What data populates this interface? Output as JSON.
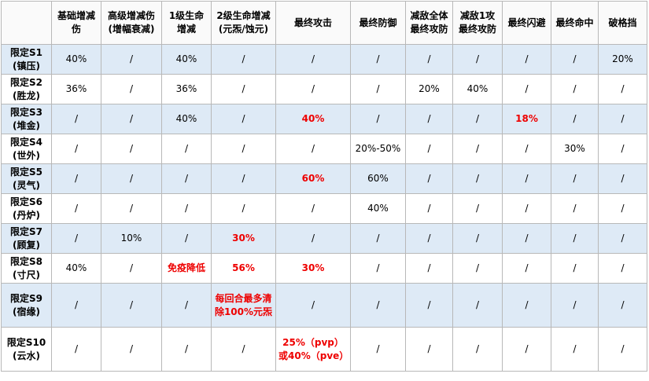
{
  "table": {
    "header": [
      "基础增减伤",
      "高级增减伤(增幅衰减)",
      "1级生命增减",
      "2级生命增减(元炁/蚀元)",
      "最终攻击",
      "最终防御",
      "减敌全体最终攻防",
      "减敌1攻最终攻防",
      "最终闪避",
      "最终命中",
      "破格挡"
    ],
    "emphasis_color": "#ee0000",
    "rows": [
      {
        "label": "限定S1",
        "note": "(镇压)",
        "cells": [
          "40%",
          "/",
          "40%",
          "/",
          "/",
          "/",
          "/",
          "/",
          "/",
          "/",
          "20%"
        ],
        "emphasis": []
      },
      {
        "label": "限定S2",
        "note": "(胜龙)",
        "cells": [
          "36%",
          "/",
          "36%",
          "/",
          "/",
          "/",
          "20%",
          "40%",
          "/",
          "/",
          "/"
        ],
        "emphasis": []
      },
      {
        "label": "限定S3",
        "note": "(堆金)",
        "cells": [
          "/",
          "/",
          "40%",
          "/",
          "40%",
          "/",
          "/",
          "/",
          "18%",
          "/",
          "/"
        ],
        "emphasis": [
          4,
          8
        ]
      },
      {
        "label": "限定S4",
        "note": "(世外)",
        "cells": [
          "/",
          "/",
          "/",
          "/",
          "/",
          "20%-50%",
          "/",
          "/",
          "/",
          "30%",
          "/"
        ],
        "emphasis": []
      },
      {
        "label": "限定S5",
        "note": "(灵气)",
        "cells": [
          "/",
          "/",
          "/",
          "/",
          "60%",
          "60%",
          "/",
          "/",
          "/",
          "/",
          "/"
        ],
        "emphasis": [
          4
        ]
      },
      {
        "label": "限定S6",
        "note": "(丹炉)",
        "cells": [
          "/",
          "/",
          "/",
          "/",
          "/",
          "40%",
          "/",
          "/",
          "/",
          "/",
          "/"
        ],
        "emphasis": []
      },
      {
        "label": "限定S7",
        "note": "(顾复)",
        "cells": [
          "/",
          "10%",
          "/",
          "30%",
          "/",
          "/",
          "/",
          "/",
          "/",
          "/",
          "/"
        ],
        "emphasis": [
          3
        ]
      },
      {
        "label": "限定S8",
        "note": "(寸尺)",
        "cells": [
          "40%",
          "/",
          "免疫降低",
          "56%",
          "30%",
          "/",
          "/",
          "/",
          "/",
          "/",
          "/"
        ],
        "emphasis": [
          2,
          3,
          4
        ]
      },
      {
        "label": "限定S9",
        "note": "(宿缘)",
        "cells": [
          "/",
          "/",
          "/",
          "每回合最多清除100%元炁",
          "/",
          "/",
          "/",
          "/",
          "/",
          "/",
          "/"
        ],
        "emphasis": [
          3
        ]
      },
      {
        "label": "限定S10",
        "note": "(云水)",
        "cells": [
          "/",
          "/",
          "/",
          "/",
          "25%（pvp）或40%（pve）",
          "/",
          "/",
          "/",
          "/",
          "/",
          "/"
        ],
        "emphasis": [
          4
        ]
      }
    ]
  }
}
